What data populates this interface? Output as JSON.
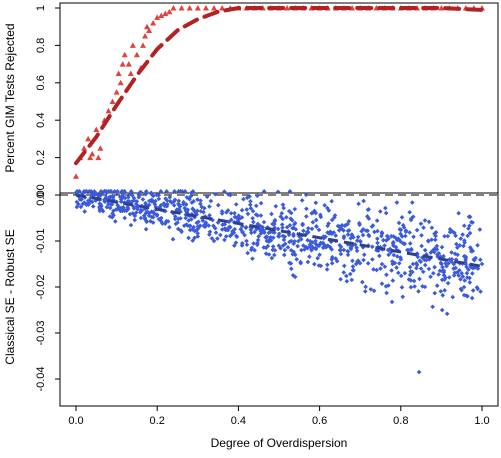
{
  "chart_data": [
    {
      "panel": "top",
      "type": "scatter",
      "ylabel": "Percent GIM Tests Rejected",
      "xlabel": "",
      "xlim": [
        0,
        1
      ],
      "ylim": [
        0,
        1
      ],
      "yticks": [
        "0",
        "0.2",
        "0.4",
        "0.6",
        "0.8",
        "1"
      ],
      "colors": {
        "points": "#e0413a",
        "curve": "#b22222"
      },
      "marker": "triangle",
      "points": [
        [
          0.0,
          0.1
        ],
        [
          0.01,
          0.2
        ],
        [
          0.02,
          0.25
        ],
        [
          0.03,
          0.3
        ],
        [
          0.035,
          0.2
        ],
        [
          0.04,
          0.22
        ],
        [
          0.05,
          0.35
        ],
        [
          0.055,
          0.2
        ],
        [
          0.06,
          0.25
        ],
        [
          0.07,
          0.4
        ],
        [
          0.08,
          0.45
        ],
        [
          0.09,
          0.5
        ],
        [
          0.1,
          0.55
        ],
        [
          0.105,
          0.65
        ],
        [
          0.11,
          0.6
        ],
        [
          0.115,
          0.7
        ],
        [
          0.12,
          0.75
        ],
        [
          0.13,
          0.7
        ],
        [
          0.135,
          0.65
        ],
        [
          0.14,
          0.8
        ],
        [
          0.15,
          0.75
        ],
        [
          0.16,
          0.68
        ],
        [
          0.165,
          0.8
        ],
        [
          0.17,
          0.85
        ],
        [
          0.175,
          0.9
        ],
        [
          0.18,
          0.88
        ],
        [
          0.19,
          0.92
        ],
        [
          0.2,
          0.95
        ],
        [
          0.21,
          0.96
        ],
        [
          0.22,
          0.97
        ],
        [
          0.23,
          0.98
        ],
        [
          0.24,
          1.0
        ],
        [
          0.26,
          1.0
        ],
        [
          0.28,
          1.0
        ],
        [
          0.3,
          1.0
        ],
        [
          0.32,
          1.0
        ],
        [
          0.34,
          1.0
        ],
        [
          0.36,
          1.0
        ],
        [
          0.38,
          1.0
        ],
        [
          0.4,
          1.0
        ],
        [
          0.42,
          1.0
        ],
        [
          0.44,
          1.0
        ],
        [
          0.46,
          1.0
        ],
        [
          0.48,
          1.0
        ],
        [
          0.5,
          1.0
        ],
        [
          0.52,
          1.0
        ],
        [
          0.54,
          1.0
        ],
        [
          0.56,
          1.0
        ],
        [
          0.58,
          1.0
        ],
        [
          0.6,
          1.0
        ],
        [
          0.62,
          1.0
        ],
        [
          0.64,
          1.0
        ],
        [
          0.66,
          1.0
        ],
        [
          0.68,
          1.0
        ],
        [
          0.7,
          1.0
        ],
        [
          0.72,
          1.0
        ],
        [
          0.74,
          1.0
        ],
        [
          0.76,
          1.0
        ],
        [
          0.78,
          1.0
        ],
        [
          0.8,
          1.0
        ],
        [
          0.82,
          1.0
        ],
        [
          0.84,
          1.0
        ],
        [
          0.86,
          1.0
        ],
        [
          0.88,
          1.0
        ],
        [
          0.9,
          1.0
        ],
        [
          0.92,
          1.0
        ],
        [
          0.94,
          1.0
        ],
        [
          0.96,
          1.0
        ],
        [
          0.98,
          1.0
        ],
        [
          1.0,
          1.0
        ]
      ],
      "fit_curve": [
        [
          0.0,
          0.17
        ],
        [
          0.05,
          0.31
        ],
        [
          0.1,
          0.48
        ],
        [
          0.15,
          0.64
        ],
        [
          0.2,
          0.78
        ],
        [
          0.25,
          0.88
        ],
        [
          0.3,
          0.94
        ],
        [
          0.35,
          0.98
        ],
        [
          0.4,
          1.0
        ],
        [
          0.5,
          1.0
        ],
        [
          0.6,
          1.0
        ],
        [
          0.7,
          1.0
        ],
        [
          0.8,
          1.0
        ],
        [
          0.9,
          1.0
        ],
        [
          1.0,
          0.99
        ]
      ]
    },
    {
      "panel": "bottom",
      "type": "scatter",
      "ylabel": "Classical SE - Robust SE",
      "xlabel": "Degree of Overdispersion",
      "xlim": [
        0,
        1
      ],
      "ylim": [
        -0.04,
        0
      ],
      "xticks": [
        "0.0",
        "0.2",
        "0.4",
        "0.6",
        "0.8",
        "1.0"
      ],
      "yticks": [
        "0.00",
        "-0.01",
        "-0.02",
        "-0.03",
        "-0.04"
      ],
      "reference_line": 0,
      "colors": {
        "points": "#3b5bdb",
        "trend": "#2f3f8f",
        "refline": "#000000"
      },
      "marker": "diamond",
      "trend": [
        [
          0.0,
          0.0
        ],
        [
          1.0,
          -0.0155
        ]
      ],
      "points": [
        [
          0.0,
          0.0005
        ],
        [
          0.01,
          -0.001
        ],
        [
          0.02,
          0.0008
        ],
        [
          0.03,
          -0.002
        ],
        [
          0.04,
          -0.0015
        ],
        [
          0.05,
          0.0003
        ],
        [
          0.06,
          -0.003
        ],
        [
          0.07,
          -0.001
        ],
        [
          0.08,
          -0.002
        ],
        [
          0.09,
          -0.004
        ],
        [
          0.1,
          -0.0015
        ],
        [
          0.11,
          -0.0035
        ],
        [
          0.12,
          -0.005
        ],
        [
          0.13,
          -0.002
        ],
        [
          0.14,
          -0.004
        ],
        [
          0.15,
          -0.0025
        ],
        [
          0.16,
          -0.005
        ],
        [
          0.17,
          -0.003
        ],
        [
          0.18,
          -0.0045
        ],
        [
          0.19,
          -0.006
        ],
        [
          0.2,
          -0.003
        ],
        [
          0.21,
          -0.005
        ],
        [
          0.22,
          -0.0035
        ],
        [
          0.23,
          -0.007
        ],
        [
          0.24,
          -0.004
        ],
        [
          0.25,
          -0.006
        ],
        [
          0.26,
          -0.008
        ],
        [
          0.27,
          -0.005
        ],
        [
          0.28,
          -0.0045
        ],
        [
          0.29,
          -0.007
        ],
        [
          0.3,
          -0.009
        ],
        [
          0.31,
          -0.005
        ],
        [
          0.32,
          -0.006
        ],
        [
          0.33,
          -0.008
        ],
        [
          0.34,
          -0.01
        ],
        [
          0.35,
          -0.006
        ],
        [
          0.36,
          -0.0075
        ],
        [
          0.37,
          -0.009
        ],
        [
          0.38,
          -0.007
        ],
        [
          0.39,
          -0.011
        ],
        [
          0.4,
          -0.006
        ],
        [
          0.41,
          -0.008
        ],
        [
          0.42,
          -0.01
        ],
        [
          0.43,
          -0.007
        ],
        [
          0.44,
          -0.012
        ],
        [
          0.45,
          -0.009
        ],
        [
          0.46,
          -0.007
        ],
        [
          0.47,
          -0.01
        ],
        [
          0.48,
          -0.008
        ],
        [
          0.49,
          -0.012
        ],
        [
          0.5,
          -0.009
        ],
        [
          0.51,
          -0.011
        ],
        [
          0.52,
          -0.007
        ],
        [
          0.53,
          -0.01
        ],
        [
          0.54,
          -0.013
        ],
        [
          0.55,
          -0.009
        ],
        [
          0.56,
          -0.011
        ],
        [
          0.57,
          -0.008
        ],
        [
          0.58,
          -0.012
        ],
        [
          0.59,
          -0.01
        ],
        [
          0.6,
          -0.013
        ],
        [
          0.61,
          -0.009
        ],
        [
          0.62,
          -0.011
        ],
        [
          0.63,
          -0.014
        ],
        [
          0.64,
          -0.01
        ],
        [
          0.65,
          -0.012
        ],
        [
          0.66,
          -0.009
        ],
        [
          0.67,
          -0.013
        ],
        [
          0.68,
          -0.011
        ],
        [
          0.69,
          -0.015
        ],
        [
          0.7,
          -0.01
        ],
        [
          0.71,
          -0.013
        ],
        [
          0.72,
          -0.011
        ],
        [
          0.73,
          -0.014
        ],
        [
          0.74,
          -0.012
        ],
        [
          0.75,
          -0.016
        ],
        [
          0.76,
          -0.011
        ],
        [
          0.77,
          -0.013
        ],
        [
          0.78,
          -0.015
        ],
        [
          0.79,
          -0.012
        ],
        [
          0.8,
          -0.014
        ],
        [
          0.81,
          -0.017
        ],
        [
          0.82,
          -0.012
        ],
        [
          0.83,
          -0.015
        ],
        [
          0.84,
          -0.013
        ],
        [
          0.845,
          -0.0385
        ],
        [
          0.85,
          -0.016
        ],
        [
          0.86,
          -0.012
        ],
        [
          0.87,
          -0.014
        ],
        [
          0.88,
          -0.017
        ],
        [
          0.89,
          -0.013
        ],
        [
          0.9,
          -0.015
        ],
        [
          0.91,
          -0.018
        ],
        [
          0.92,
          -0.014
        ],
        [
          0.93,
          -0.016
        ],
        [
          0.94,
          -0.013
        ],
        [
          0.95,
          -0.017
        ],
        [
          0.96,
          -0.015
        ],
        [
          0.97,
          -0.019
        ],
        [
          0.98,
          -0.014
        ],
        [
          0.99,
          -0.016
        ],
        [
          1.0,
          -0.015
        ]
      ]
    }
  ]
}
